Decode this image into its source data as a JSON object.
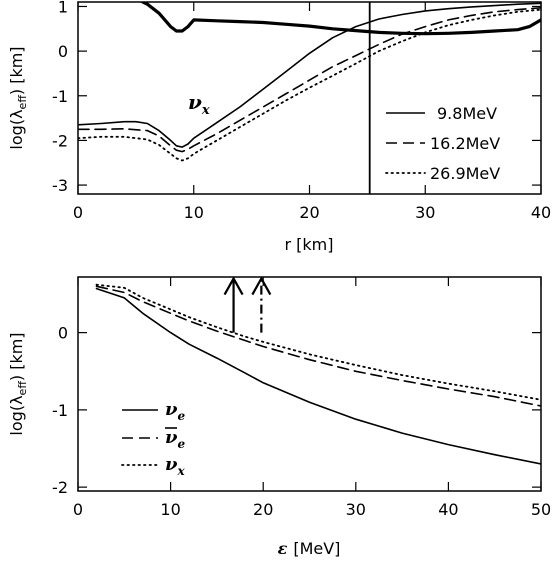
{
  "chart_data": [
    {
      "type": "line",
      "xlabel": "r [km]",
      "ylabel_main": "log(λ",
      "ylabel_sub": "eff",
      "ylabel_tail": ") [km]",
      "xlim": [
        0,
        40
      ],
      "ylim": [
        -3.2,
        1.1
      ],
      "xticks": [
        0,
        10,
        20,
        30,
        40
      ],
      "yticks": [
        -3,
        -2,
        -1,
        0,
        1
      ],
      "annotation_symbol": "ν",
      "annotation_sub": "x",
      "annotation_pos": {
        "x": 9.5,
        "y": -1.3
      },
      "vertical_line_x": 25.2,
      "legend_position": "right",
      "series": [
        {
          "name": "9.8MeV",
          "style": "solid",
          "x": [
            0,
            2,
            4,
            5,
            6,
            7,
            8,
            8.5,
            9,
            9.5,
            10,
            12,
            14,
            16,
            18,
            20,
            22,
            24,
            26,
            28,
            30,
            32,
            34,
            36,
            38,
            40
          ],
          "y": [
            -1.65,
            -1.62,
            -1.58,
            -1.58,
            -1.62,
            -1.78,
            -2.0,
            -2.12,
            -2.15,
            -2.08,
            -1.95,
            -1.6,
            -1.25,
            -0.85,
            -0.45,
            -0.05,
            0.3,
            0.55,
            0.72,
            0.82,
            0.9,
            0.95,
            0.99,
            1.02,
            1.05,
            1.07
          ]
        },
        {
          "name": "16.2MeV",
          "style": "dashed",
          "x": [
            0,
            2,
            4,
            6,
            7,
            8,
            8.5,
            9,
            9.5,
            10,
            12,
            14,
            16,
            18,
            20,
            22,
            24,
            26,
            28,
            30,
            32,
            34,
            36,
            38,
            40
          ],
          "y": [
            -1.75,
            -1.75,
            -1.74,
            -1.78,
            -1.9,
            -2.12,
            -2.22,
            -2.25,
            -2.2,
            -2.12,
            -1.85,
            -1.55,
            -1.25,
            -0.95,
            -0.65,
            -0.35,
            -0.1,
            0.15,
            0.38,
            0.55,
            0.7,
            0.8,
            0.88,
            0.93,
            0.97
          ]
        },
        {
          "name": "26.9MeV",
          "style": "dotted",
          "x": [
            0,
            2,
            4,
            6,
            7,
            8,
            8.5,
            9,
            9.5,
            10,
            12,
            14,
            16,
            18,
            20,
            22,
            24,
            26,
            28,
            30,
            32,
            34,
            36,
            38,
            40
          ],
          "y": [
            -1.95,
            -1.92,
            -1.92,
            -1.98,
            -2.1,
            -2.3,
            -2.4,
            -2.45,
            -2.4,
            -2.3,
            -2.0,
            -1.7,
            -1.4,
            -1.1,
            -0.82,
            -0.55,
            -0.28,
            0.0,
            0.22,
            0.42,
            0.58,
            0.7,
            0.8,
            0.88,
            0.93
          ]
        },
        {
          "name": "",
          "style": "thick",
          "x": [
            5.6,
            6,
            7,
            8,
            8.5,
            9,
            9.5,
            10,
            12,
            14,
            16,
            18,
            20,
            22,
            24,
            26,
            28,
            30,
            32,
            34,
            36,
            38,
            39,
            40
          ],
          "y": [
            1.1,
            1.05,
            0.85,
            0.55,
            0.45,
            0.45,
            0.55,
            0.7,
            0.68,
            0.66,
            0.64,
            0.6,
            0.56,
            0.5,
            0.46,
            0.42,
            0.4,
            0.39,
            0.4,
            0.42,
            0.45,
            0.48,
            0.55,
            0.7
          ]
        }
      ]
    },
    {
      "type": "line",
      "xlabel_sym": "ε",
      "xlabel": "[MeV]",
      "ylabel_main": "log(λ",
      "ylabel_sub": "eff",
      "ylabel_tail": ") [km]",
      "xlim": [
        0,
        50
      ],
      "ylim": [
        -2.05,
        0.72
      ],
      "xticks": [
        0,
        10,
        20,
        30,
        40,
        50
      ],
      "yticks": [
        -2,
        -1,
        0
      ],
      "arrows": [
        {
          "x": 16.8,
          "style": "solid",
          "y_from": 0.0,
          "y_to": 0.7
        },
        {
          "x": 19.8,
          "style": "dashdot",
          "y_from": 0.0,
          "y_to": 0.7
        }
      ],
      "legend_position": "bottom-left",
      "legend_symbol": "ν",
      "series": [
        {
          "name_sub": "e",
          "bar": false,
          "style": "solid",
          "x": [
            2,
            4,
            5,
            7,
            10,
            12,
            15,
            18,
            20,
            25,
            30,
            35,
            40,
            45,
            50
          ],
          "y": [
            0.57,
            0.49,
            0.45,
            0.25,
            0.0,
            -0.15,
            -0.33,
            -0.52,
            -0.65,
            -0.9,
            -1.12,
            -1.3,
            -1.45,
            -1.58,
            -1.7
          ]
        },
        {
          "name_sub": "e",
          "bar": true,
          "style": "dashed",
          "x": [
            2,
            5,
            7,
            10,
            12,
            15,
            18,
            20,
            25,
            30,
            35,
            40,
            45,
            50
          ],
          "y": [
            0.6,
            0.52,
            0.4,
            0.25,
            0.15,
            0.02,
            -0.1,
            -0.18,
            -0.35,
            -0.5,
            -0.62,
            -0.73,
            -0.83,
            -0.95
          ]
        },
        {
          "name_sub": "x",
          "bar": false,
          "style": "dotted",
          "x": [
            2,
            5,
            7,
            10,
            12,
            15,
            18,
            20,
            25,
            30,
            35,
            40,
            45,
            50
          ],
          "y": [
            0.62,
            0.58,
            0.45,
            0.3,
            0.2,
            0.07,
            -0.05,
            -0.12,
            -0.28,
            -0.42,
            -0.55,
            -0.66,
            -0.76,
            -0.87
          ]
        }
      ]
    }
  ]
}
